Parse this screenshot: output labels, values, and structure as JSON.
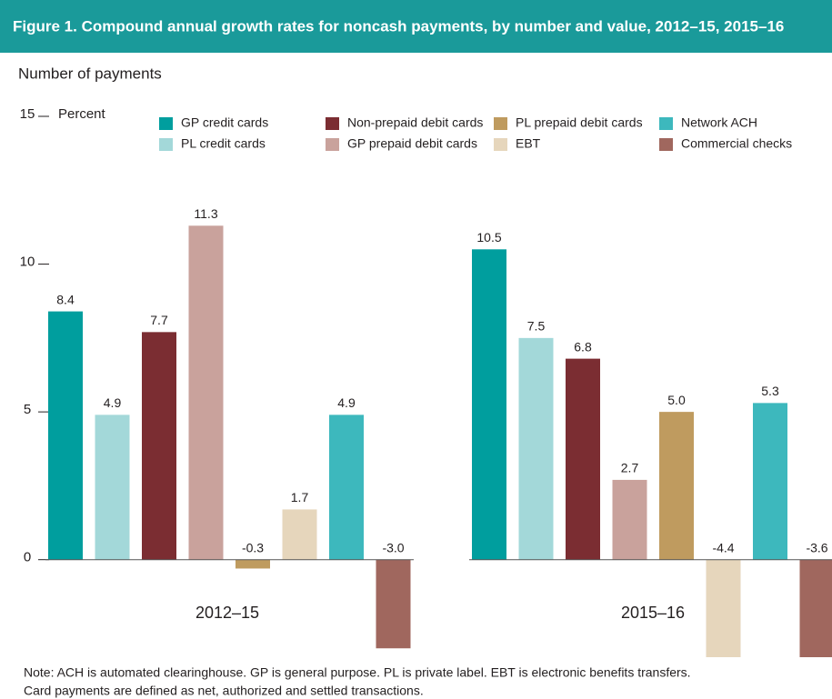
{
  "chart_data": {
    "type": "bar",
    "title": "Figure 1. Compound annual growth rates for noncash payments, by number and value, 2012–15, 2015–16",
    "subtitle": "Number of payments",
    "y_label": "Percent",
    "categories": [
      "2012–15",
      "2015–16"
    ],
    "series": [
      {
        "name": "GP credit cards",
        "color": "#009e9e",
        "values": [
          8.4,
          10.5
        ],
        "value_labels": [
          "8.4",
          "10.5"
        ]
      },
      {
        "name": "PL credit cards",
        "color": "#a3d8d9",
        "values": [
          4.9,
          7.5
        ],
        "value_labels": [
          "4.9",
          "7.5"
        ]
      },
      {
        "name": "Non-prepaid debit cards",
        "color": "#7b2d32",
        "values": [
          7.7,
          6.8
        ],
        "value_labels": [
          "7.7",
          "6.8"
        ]
      },
      {
        "name": "GP prepaid debit cards",
        "color": "#c9a29c",
        "values": [
          11.3,
          2.7
        ],
        "value_labels": [
          "11.3",
          "2.7"
        ]
      },
      {
        "name": "PL prepaid debit cards",
        "color": "#bf9b5f",
        "values": [
          -0.3,
          5.0
        ],
        "value_labels": [
          "-0.3",
          "5.0"
        ]
      },
      {
        "name": "EBT",
        "color": "#e6d6bc",
        "values": [
          1.7,
          -4.4
        ],
        "value_labels": [
          "1.7",
          "-4.4"
        ]
      },
      {
        "name": "Network ACH",
        "color": "#3db8bd",
        "values": [
          4.9,
          5.3
        ],
        "value_labels": [
          "4.9",
          "5.3"
        ]
      },
      {
        "name": "Commercial checks",
        "color": "#a0675e",
        "values": [
          -3.0,
          -3.6
        ],
        "value_labels": [
          "-3.0",
          "-3.6"
        ]
      }
    ],
    "ylim": [
      -3.3,
      15
    ],
    "yticks": [
      0,
      5,
      10,
      15
    ],
    "note": [
      "Note: ACH is automated clearinghouse. GP is general purpose. PL is private label. EBT is electronic benefits transfers.",
      "Card payments are defined as net, authorized and settled transactions."
    ]
  }
}
